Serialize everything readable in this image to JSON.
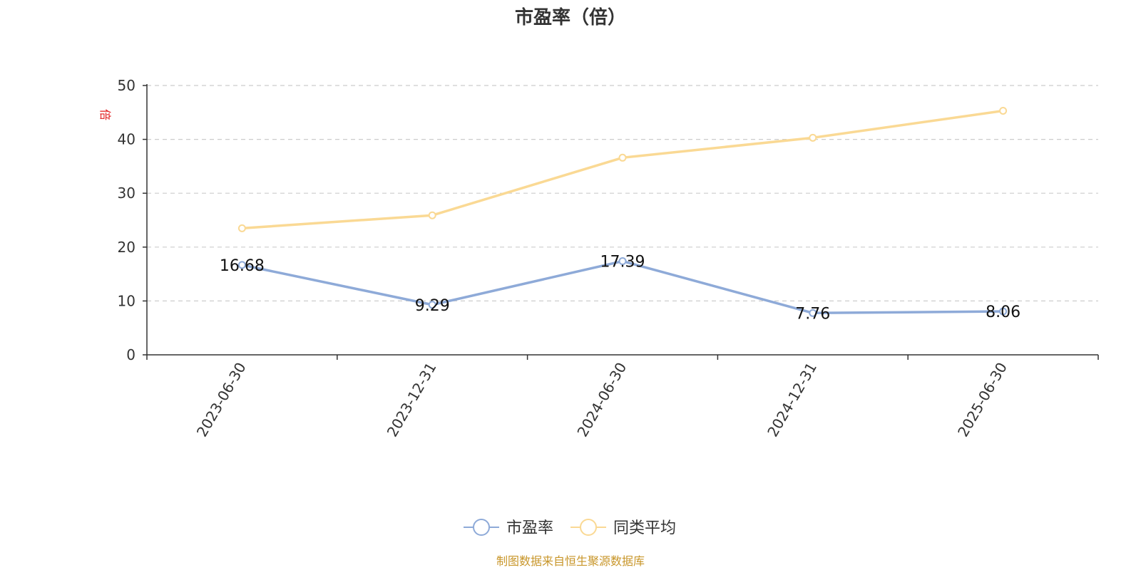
{
  "chart_data": {
    "type": "line",
    "title": "市盈率（倍）",
    "ylabel": "倍",
    "xlabel": "",
    "categories": [
      "2023-06-30",
      "2023-12-31",
      "2024-06-30",
      "2024-12-31",
      "2025-06-30"
    ],
    "ylim": [
      0,
      50
    ],
    "yticks": [
      0,
      10,
      20,
      30,
      40,
      50
    ],
    "grid": true,
    "legend_position": "bottom-center",
    "series": [
      {
        "name": "市盈率",
        "color": "#8eaad8",
        "values": [
          16.68,
          9.29,
          17.39,
          7.76,
          8.06
        ],
        "labels": [
          "16.68",
          "9.29",
          "17.39",
          "7.76",
          "8.06"
        ]
      },
      {
        "name": "同类平均",
        "color": "#fad994",
        "values": [
          23.5,
          25.9,
          36.6,
          40.3,
          45.3
        ]
      }
    ]
  },
  "source_note": "制图数据来自恒生聚源数据库"
}
